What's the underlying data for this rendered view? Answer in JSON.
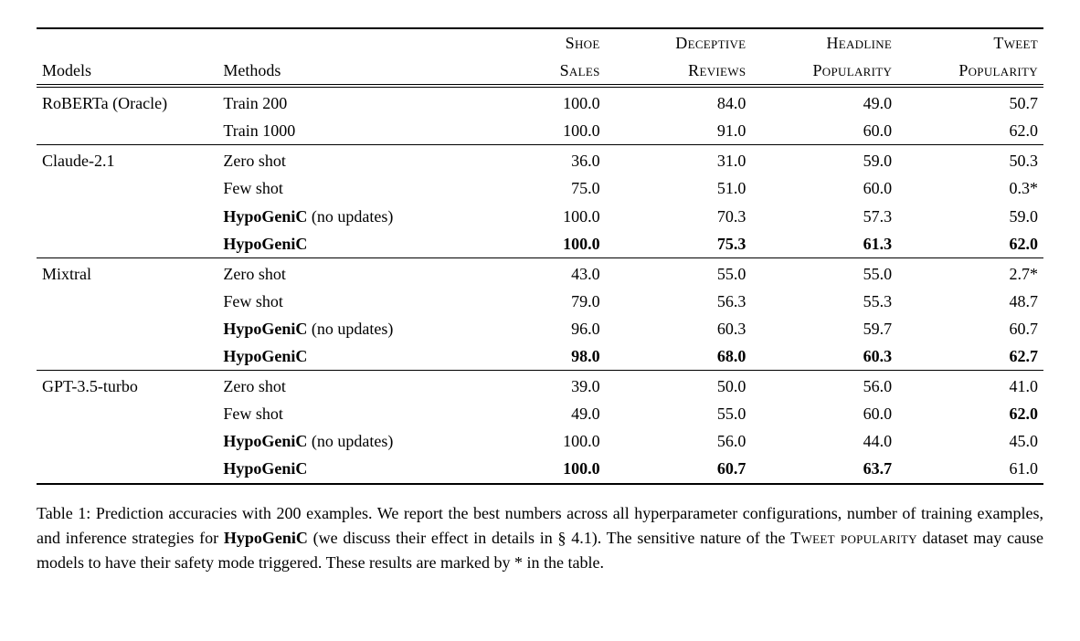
{
  "columns": {
    "models": "Models",
    "methods": "Methods",
    "shoe_sales": {
      "l1": "Shoe",
      "l2": "Sales"
    },
    "deceptive_reviews": {
      "l1": "Deceptive",
      "l2": "Reviews"
    },
    "headline_popularity": {
      "l1": "Headline",
      "l2": "Popularity"
    },
    "tweet_popularity": {
      "l1": "Tweet",
      "l2": "Popularity"
    }
  },
  "groups": [
    {
      "model": "RoBERTa (Oracle)",
      "rows": [
        {
          "method": "Train 200",
          "bold": false,
          "vals": [
            {
              "v": "100.0",
              "b": false
            },
            {
              "v": "84.0",
              "b": false
            },
            {
              "v": "49.0",
              "b": false
            },
            {
              "v": "50.7",
              "b": false
            }
          ]
        },
        {
          "method": "Train 1000",
          "bold": false,
          "vals": [
            {
              "v": "100.0",
              "b": false
            },
            {
              "v": "91.0",
              "b": false
            },
            {
              "v": "60.0",
              "b": false
            },
            {
              "v": "62.0",
              "b": false
            }
          ]
        }
      ]
    },
    {
      "model": "Claude-2.1",
      "rows": [
        {
          "method": "Zero shot",
          "bold": false,
          "vals": [
            {
              "v": "36.0",
              "b": false
            },
            {
              "v": "31.0",
              "b": false
            },
            {
              "v": "59.0",
              "b": false
            },
            {
              "v": "50.3",
              "b": false
            }
          ]
        },
        {
          "method": "Few shot",
          "bold": false,
          "vals": [
            {
              "v": "75.0",
              "b": false
            },
            {
              "v": "51.0",
              "b": false
            },
            {
              "v": "60.0",
              "b": false
            },
            {
              "v": "0.3*",
              "b": false
            }
          ]
        },
        {
          "method": "HypoGeniC",
          "suffix": " (no updates)",
          "bold": true,
          "vals": [
            {
              "v": "100.0",
              "b": false
            },
            {
              "v": "70.3",
              "b": false
            },
            {
              "v": "57.3",
              "b": false
            },
            {
              "v": "59.0",
              "b": false
            }
          ]
        },
        {
          "method": "HypoGeniC",
          "bold": true,
          "vals": [
            {
              "v": "100.0",
              "b": true
            },
            {
              "v": "75.3",
              "b": true
            },
            {
              "v": "61.3",
              "b": true
            },
            {
              "v": "62.0",
              "b": true
            }
          ]
        }
      ]
    },
    {
      "model": "Mixtral",
      "rows": [
        {
          "method": "Zero shot",
          "bold": false,
          "vals": [
            {
              "v": "43.0",
              "b": false
            },
            {
              "v": "55.0",
              "b": false
            },
            {
              "v": "55.0",
              "b": false
            },
            {
              "v": "2.7*",
              "b": false
            }
          ]
        },
        {
          "method": "Few shot",
          "bold": false,
          "vals": [
            {
              "v": "79.0",
              "b": false
            },
            {
              "v": "56.3",
              "b": false
            },
            {
              "v": "55.3",
              "b": false
            },
            {
              "v": "48.7",
              "b": false
            }
          ]
        },
        {
          "method": "HypoGeniC",
          "suffix": " (no updates)",
          "bold": true,
          "vals": [
            {
              "v": "96.0",
              "b": false
            },
            {
              "v": "60.3",
              "b": false
            },
            {
              "v": "59.7",
              "b": false
            },
            {
              "v": "60.7",
              "b": false
            }
          ]
        },
        {
          "method": "HypoGeniC",
          "bold": true,
          "vals": [
            {
              "v": "98.0",
              "b": true
            },
            {
              "v": "68.0",
              "b": true
            },
            {
              "v": "60.3",
              "b": true
            },
            {
              "v": "62.7",
              "b": true
            }
          ]
        }
      ]
    },
    {
      "model": "GPT-3.5-turbo",
      "rows": [
        {
          "method": "Zero shot",
          "bold": false,
          "vals": [
            {
              "v": "39.0",
              "b": false
            },
            {
              "v": "50.0",
              "b": false
            },
            {
              "v": "56.0",
              "b": false
            },
            {
              "v": "41.0",
              "b": false
            }
          ]
        },
        {
          "method": "Few shot",
          "bold": false,
          "vals": [
            {
              "v": "49.0",
              "b": false
            },
            {
              "v": "55.0",
              "b": false
            },
            {
              "v": "60.0",
              "b": false
            },
            {
              "v": "62.0",
              "b": true
            }
          ]
        },
        {
          "method": "HypoGeniC",
          "suffix": " (no updates)",
          "bold": true,
          "vals": [
            {
              "v": "100.0",
              "b": false
            },
            {
              "v": "56.0",
              "b": false
            },
            {
              "v": "44.0",
              "b": false
            },
            {
              "v": "45.0",
              "b": false
            }
          ]
        },
        {
          "method": "HypoGeniC",
          "bold": true,
          "vals": [
            {
              "v": "100.0",
              "b": true
            },
            {
              "v": "60.7",
              "b": true
            },
            {
              "v": "63.7",
              "b": true
            },
            {
              "v": "61.0",
              "b": false
            }
          ]
        }
      ]
    }
  ],
  "caption": {
    "prefix": "Table 1: Prediction accuracies with 200 examples. We report the best numbers across all hyperparameter configurations, number of training examples, and inference strategies for ",
    "bold1": "HypoGeniC",
    "mid": " (we discuss their effect in details in § 4.1). The sensitive nature of the ",
    "sc1": "Tweet popularity",
    "suffix": " dataset may cause models to have their safety mode triggered. These results are marked by * in the table."
  }
}
